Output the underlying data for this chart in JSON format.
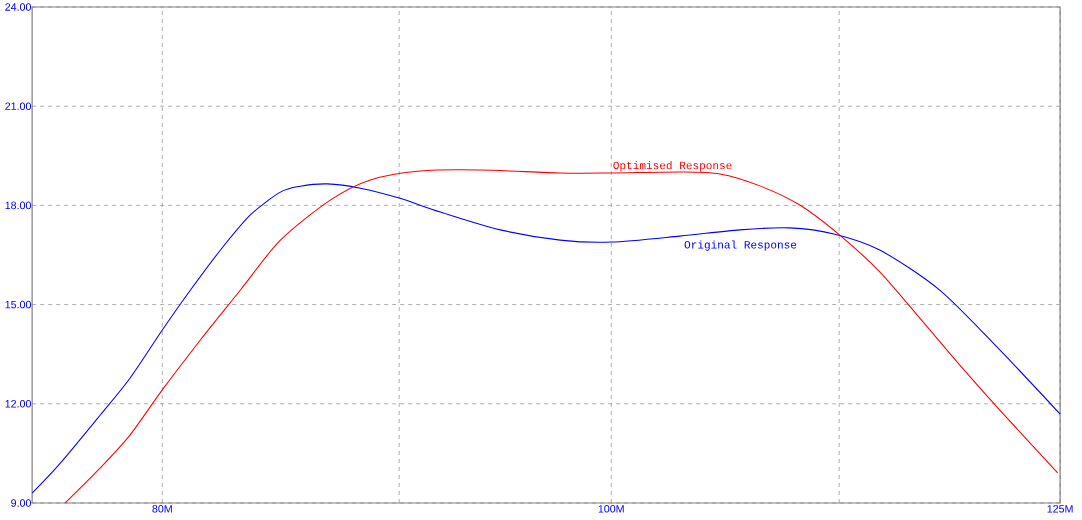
{
  "chart_data": {
    "type": "line",
    "log": "x",
    "grid": true,
    "line_style": "solid",
    "xlim": [
      75,
      125
    ],
    "ylim": [
      9,
      24
    ],
    "xticks": [
      {
        "value": 80,
        "label": "80M"
      },
      {
        "value": 90,
        "label": null
      },
      {
        "value": 100,
        "label": "100M"
      },
      {
        "value": 112,
        "label": null
      },
      {
        "value": 125,
        "label": "125M"
      }
    ],
    "yticks": [
      {
        "value": 9,
        "label": "9.00"
      },
      {
        "value": 12,
        "label": "12.00"
      },
      {
        "value": 15,
        "label": "15.00"
      },
      {
        "value": 18,
        "label": "18.00"
      },
      {
        "value": 21,
        "label": "21.00"
      },
      {
        "value": 24,
        "label": "24.00"
      }
    ],
    "series": [
      {
        "name": "Original Response",
        "color": "#0000ff",
        "x": [
          75,
          76.05,
          77.58,
          78.74,
          80,
          81.13,
          82.35,
          83.58,
          84.84,
          85.69,
          86.84,
          88.28,
          90,
          91.86,
          94.64,
          97.5,
          100,
          103.47,
          106.6,
          109.28,
          111.76,
          114.28,
          117.74,
          121.31,
          125
        ],
        "values": [
          9.3,
          10.2,
          11.66,
          12.78,
          14.23,
          15.44,
          16.65,
          17.71,
          18.4,
          18.58,
          18.65,
          18.52,
          18.22,
          17.8,
          17.26,
          16.95,
          16.89,
          17.07,
          17.26,
          17.32,
          17.13,
          16.65,
          15.44,
          13.63,
          11.69
        ]
      },
      {
        "name": "Optimised Response",
        "color": "#ff0000",
        "x": [
          76.24,
          77.58,
          78.74,
          80,
          81.53,
          83.17,
          84.84,
          86.97,
          88.72,
          90.95,
          93.71,
          97.5,
          100,
          103.47,
          105.55,
          107.67,
          109.83,
          112.03,
          114.28,
          116.58,
          118.92,
          121.31,
          124.85
        ],
        "values": [
          9.0,
          10.06,
          11.06,
          12.42,
          13.93,
          15.44,
          16.95,
          18.16,
          18.77,
          19.04,
          19.07,
          18.98,
          18.98,
          19.01,
          18.95,
          18.59,
          18.01,
          17.1,
          15.99,
          14.59,
          13.17,
          11.81,
          9.91
        ]
      }
    ]
  }
}
